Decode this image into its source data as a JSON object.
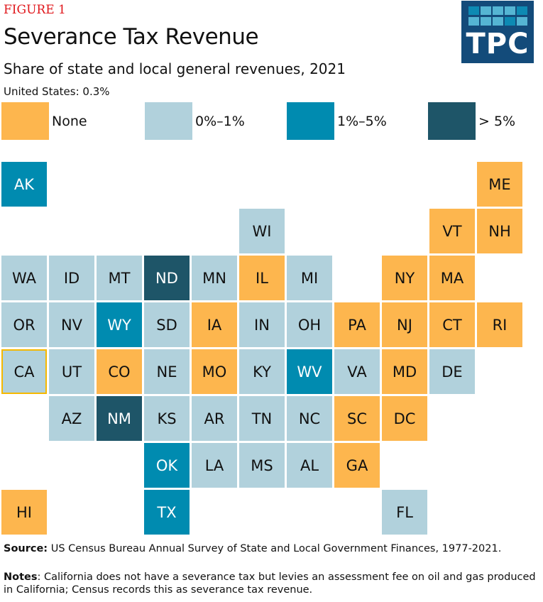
{
  "header": {
    "figure_label": "FIGURE 1",
    "title": "Severance Tax Revenue",
    "subtitle": "Share of state and local general revenues, 2021",
    "us_value": "United States: 0.3%",
    "logo_text": "TPC"
  },
  "legend": [
    {
      "label": "None",
      "color": "#FDB64E"
    },
    {
      "label": "0%–1%",
      "color": "#B1D1DC"
    },
    {
      "label": "1%–5%",
      "color": "#008BB0"
    },
    {
      "label": "> 5%",
      "color": "#1E5568"
    }
  ],
  "chart_data": {
    "type": "tile-map",
    "categories": [
      "None",
      "0%–1%",
      "1%–5%",
      "> 5%"
    ],
    "states": [
      {
        "s": "AK",
        "c": 0,
        "r": 0,
        "cat": 2
      },
      {
        "s": "ME",
        "c": 10,
        "r": 0,
        "cat": 0
      },
      {
        "s": "WI",
        "c": 5,
        "r": 1,
        "cat": 1
      },
      {
        "s": "VT",
        "c": 9,
        "r": 1,
        "cat": 0
      },
      {
        "s": "NH",
        "c": 10,
        "r": 1,
        "cat": 0
      },
      {
        "s": "WA",
        "c": 0,
        "r": 2,
        "cat": 1
      },
      {
        "s": "ID",
        "c": 1,
        "r": 2,
        "cat": 1
      },
      {
        "s": "MT",
        "c": 2,
        "r": 2,
        "cat": 1
      },
      {
        "s": "ND",
        "c": 3,
        "r": 2,
        "cat": 3
      },
      {
        "s": "MN",
        "c": 4,
        "r": 2,
        "cat": 1
      },
      {
        "s": "IL",
        "c": 5,
        "r": 2,
        "cat": 0
      },
      {
        "s": "MI",
        "c": 6,
        "r": 2,
        "cat": 1
      },
      {
        "s": "NY",
        "c": 8,
        "r": 2,
        "cat": 0
      },
      {
        "s": "MA",
        "c": 9,
        "r": 2,
        "cat": 0
      },
      {
        "s": "OR",
        "c": 0,
        "r": 3,
        "cat": 1
      },
      {
        "s": "NV",
        "c": 1,
        "r": 3,
        "cat": 1
      },
      {
        "s": "WY",
        "c": 2,
        "r": 3,
        "cat": 2
      },
      {
        "s": "SD",
        "c": 3,
        "r": 3,
        "cat": 1
      },
      {
        "s": "IA",
        "c": 4,
        "r": 3,
        "cat": 0
      },
      {
        "s": "IN",
        "c": 5,
        "r": 3,
        "cat": 1
      },
      {
        "s": "OH",
        "c": 6,
        "r": 3,
        "cat": 1
      },
      {
        "s": "PA",
        "c": 7,
        "r": 3,
        "cat": 0
      },
      {
        "s": "NJ",
        "c": 8,
        "r": 3,
        "cat": 0
      },
      {
        "s": "CT",
        "c": 9,
        "r": 3,
        "cat": 0
      },
      {
        "s": "RI",
        "c": 10,
        "r": 3,
        "cat": 0
      },
      {
        "s": "CA",
        "c": 0,
        "r": 4,
        "cat": 1,
        "highlight": true
      },
      {
        "s": "UT",
        "c": 1,
        "r": 4,
        "cat": 1
      },
      {
        "s": "CO",
        "c": 2,
        "r": 4,
        "cat": 0
      },
      {
        "s": "NE",
        "c": 3,
        "r": 4,
        "cat": 1
      },
      {
        "s": "MO",
        "c": 4,
        "r": 4,
        "cat": 0
      },
      {
        "s": "KY",
        "c": 5,
        "r": 4,
        "cat": 1
      },
      {
        "s": "WV",
        "c": 6,
        "r": 4,
        "cat": 2
      },
      {
        "s": "VA",
        "c": 7,
        "r": 4,
        "cat": 1
      },
      {
        "s": "MD",
        "c": 8,
        "r": 4,
        "cat": 0
      },
      {
        "s": "DE",
        "c": 9,
        "r": 4,
        "cat": 1
      },
      {
        "s": "AZ",
        "c": 1,
        "r": 5,
        "cat": 1
      },
      {
        "s": "NM",
        "c": 2,
        "r": 5,
        "cat": 3
      },
      {
        "s": "KS",
        "c": 3,
        "r": 5,
        "cat": 1
      },
      {
        "s": "AR",
        "c": 4,
        "r": 5,
        "cat": 1
      },
      {
        "s": "TN",
        "c": 5,
        "r": 5,
        "cat": 1
      },
      {
        "s": "NC",
        "c": 6,
        "r": 5,
        "cat": 1
      },
      {
        "s": "SC",
        "c": 7,
        "r": 5,
        "cat": 0
      },
      {
        "s": "DC",
        "c": 8,
        "r": 5,
        "cat": 0
      },
      {
        "s": "OK",
        "c": 3,
        "r": 6,
        "cat": 2
      },
      {
        "s": "LA",
        "c": 4,
        "r": 6,
        "cat": 1
      },
      {
        "s": "MS",
        "c": 5,
        "r": 6,
        "cat": 1
      },
      {
        "s": "AL",
        "c": 6,
        "r": 6,
        "cat": 1
      },
      {
        "s": "GA",
        "c": 7,
        "r": 6,
        "cat": 0
      },
      {
        "s": "HI",
        "c": 0,
        "r": 7,
        "cat": 0
      },
      {
        "s": "TX",
        "c": 3,
        "r": 7,
        "cat": 2
      },
      {
        "s": "FL",
        "c": 8,
        "r": 7,
        "cat": 1
      }
    ],
    "highlight_color": "#F5B800"
  },
  "footer": {
    "source_label": "Source:",
    "source_text": "US Census Bureau Annual Survey of State and Local Government Finances, 1977-2021.",
    "notes_label": "Notes",
    "notes_text": ": California does not have a severance  tax but levies an assessment fee on oil and gas produced in California; Census records this as severance tax revenue."
  }
}
